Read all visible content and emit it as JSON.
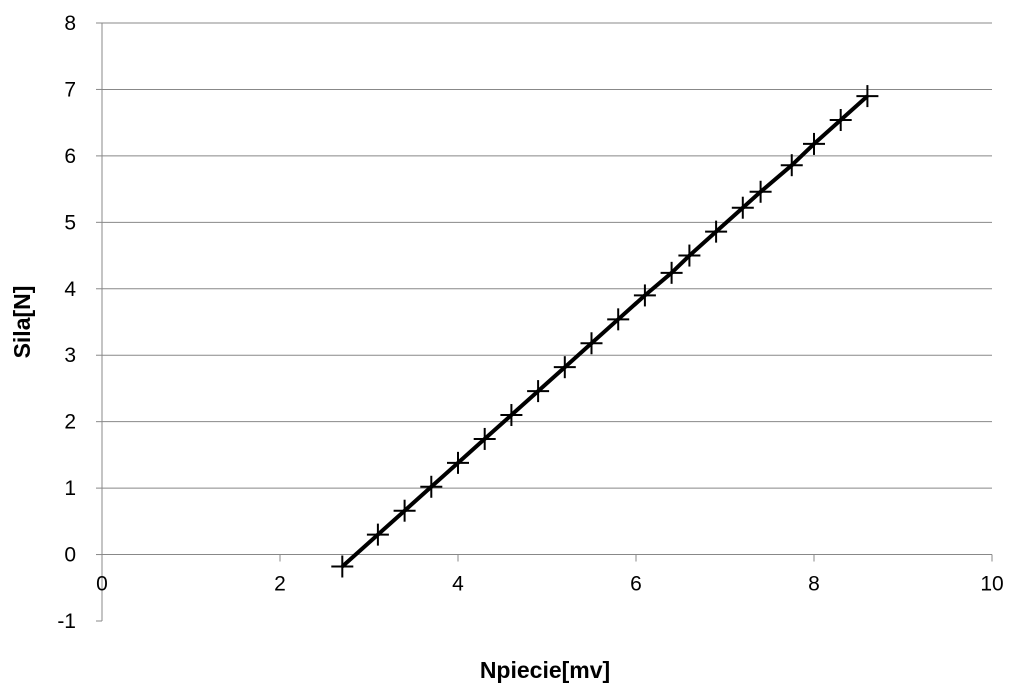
{
  "chart_data": {
    "type": "line",
    "title": "",
    "xlabel": "Npiecie[mv]",
    "ylabel": "Sila[N]",
    "xlim": [
      0,
      10
    ],
    "ylim": [
      -1,
      8
    ],
    "xticks": [
      "0",
      "2",
      "4",
      "6",
      "8",
      "10"
    ],
    "yticks": [
      "-1",
      "0",
      "1",
      "2",
      "3",
      "4",
      "5",
      "6",
      "7",
      "8"
    ],
    "grid": "horizontal",
    "legend": "none",
    "marker": "plus",
    "line_color": "#000000",
    "series": [
      {
        "x": [
          2.7,
          3.1,
          3.4,
          3.7,
          4.0,
          4.3,
          4.6,
          4.9,
          5.2,
          5.5,
          5.8,
          6.1,
          6.4,
          6.6,
          6.9,
          7.2,
          7.4,
          7.75,
          8.0,
          8.3,
          8.6
        ],
        "y": [
          -0.18,
          0.3,
          0.66,
          1.02,
          1.38,
          1.74,
          2.1,
          2.46,
          2.82,
          3.18,
          3.54,
          3.9,
          4.24,
          4.5,
          4.86,
          5.22,
          5.46,
          5.86,
          6.18,
          6.54,
          6.9
        ]
      }
    ]
  }
}
